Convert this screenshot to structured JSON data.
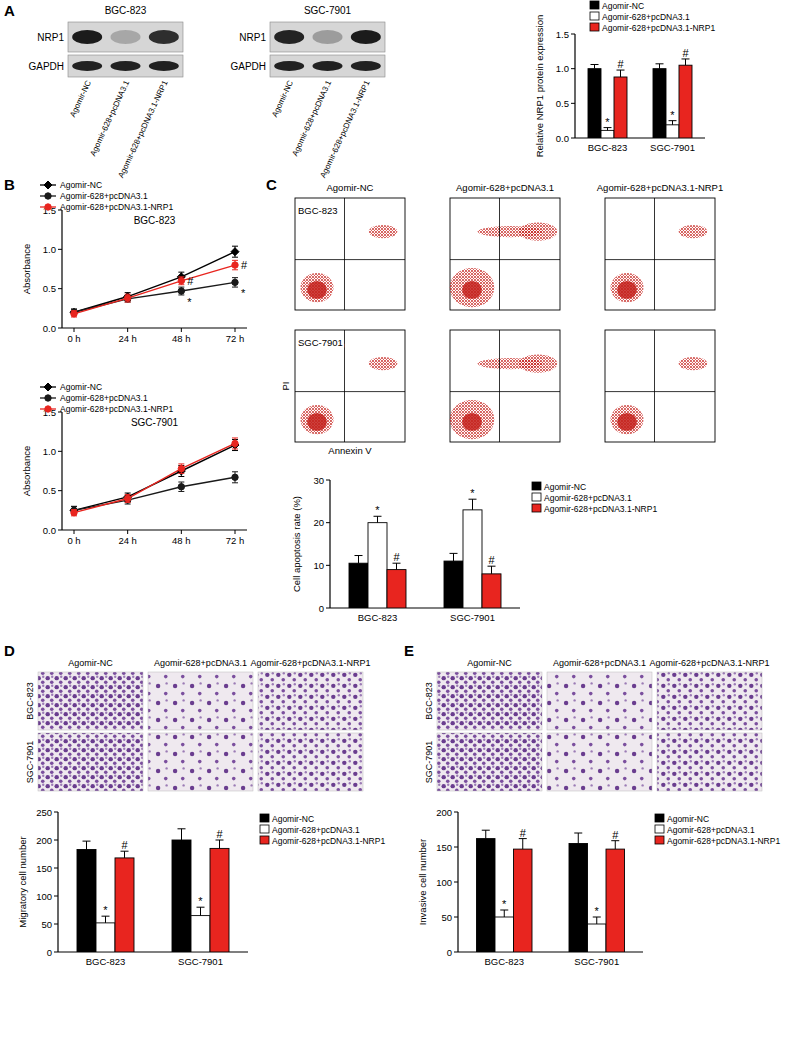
{
  "figure": {
    "panel_labels": [
      "A",
      "B",
      "C",
      "D",
      "E"
    ],
    "blots": [
      {
        "title": "BGC-823",
        "rows": [
          "NRP1",
          "GAPDH"
        ],
        "lanes": [
          "Agomir-NC",
          "Agomir-628+pcDNA3.1",
          "Agomir-628+pcDNA3.1-NRP1"
        ]
      },
      {
        "title": "SGC-7901",
        "rows": [
          "NRP1",
          "GAPDH"
        ],
        "lanes": [
          "Agomir-NC",
          "Agomir-628+pcDNA3.1",
          "Agomir-628+pcDNA3.1-NRP1"
        ]
      }
    ],
    "flow": {
      "columns": [
        "Agomir-NC",
        "Agomir-628+pcDNA3.1",
        "Agomir-628+pcDNA3.1-NRP1"
      ],
      "rows": [
        "BGC-823",
        "SGC-7901"
      ],
      "x_label": "Annexin V",
      "y_label": "PI"
    },
    "micrographs": [
      {
        "columns": [
          "Agomir-NC",
          "Agomir-628+pcDNA3.1",
          "Agomir-628+pcDNA3.1-NRP1"
        ],
        "rows": [
          "BGC-823",
          "SGC-7901"
        ]
      },
      {
        "columns": [
          "Agomir-NC",
          "Agomir-628+pcDNA3.1",
          "Agomir-628+pcDNA3.1-NRP1"
        ],
        "rows": [
          "BGC-823",
          "SGC-7901"
        ]
      }
    ]
  },
  "chart_data": [
    {
      "type": "bar",
      "y_label": "Relative NRP1 protein expression",
      "categories": [
        "BGC-823",
        "SGC-7901"
      ],
      "series": [
        {
          "name": "Agomir-NC",
          "color": "#000000",
          "values": [
            1.0,
            1.0
          ],
          "errors": [
            0.06,
            0.07
          ]
        },
        {
          "name": "Agomir-628+pcDNA3.1",
          "color": "#ffffff",
          "values": [
            0.11,
            0.19
          ],
          "errors": [
            0.04,
            0.06
          ],
          "annotations": [
            "*",
            "*"
          ]
        },
        {
          "name": "Agomir-628+pcDNA3.1-NRP1",
          "color": "#e8251f",
          "values": [
            0.88,
            1.05
          ],
          "errors": [
            0.1,
            0.09
          ],
          "annotations": [
            "#",
            "#"
          ]
        }
      ],
      "ylim": [
        0,
        1.5
      ],
      "yticks": [
        {
          "value": 0,
          "label": "0.0"
        },
        {
          "value": 0.5,
          "label": "0.5"
        },
        {
          "value": 1,
          "label": "1.0"
        },
        {
          "value": 1.5,
          "label": "1.5"
        }
      ],
      "legend": "upper right"
    },
    {
      "type": "line",
      "title": "BGC-823",
      "y_label": "Absorbance",
      "categories": [
        "0 h",
        "24 h",
        "48 h",
        "72 h"
      ],
      "series": [
        {
          "name": "Agomir-NC",
          "color": "#000000",
          "marker": "diamond",
          "values": [
            0.2,
            0.4,
            0.65,
            0.97
          ],
          "errors": [
            0.04,
            0.05,
            0.06,
            0.07
          ]
        },
        {
          "name": "Agomir-628+pcDNA3.1",
          "color": "#1a1a1a",
          "marker": "circle",
          "values": [
            0.2,
            0.37,
            0.47,
            0.58
          ],
          "errors": [
            0.04,
            0.04,
            0.05,
            0.06
          ],
          "annotations": [
            null,
            null,
            "*",
            "*"
          ]
        },
        {
          "name": "Agomir-628+pcDNA3.1-NRP1",
          "color": "#e8251f",
          "marker": "circle",
          "values": [
            0.18,
            0.38,
            0.6,
            0.8
          ],
          "errors": [
            0.04,
            0.05,
            0.05,
            0.06
          ],
          "annotations": [
            null,
            null,
            "#",
            "#"
          ]
        }
      ],
      "ylim": [
        0,
        1.5
      ],
      "yticks": [
        {
          "value": 0,
          "label": "0.0"
        },
        {
          "value": 0.5,
          "label": "0.5"
        },
        {
          "value": 1,
          "label": "1.0"
        },
        {
          "value": 1.5,
          "label": "1.5"
        }
      ],
      "legend": "upper left"
    },
    {
      "type": "line",
      "title": "SGC-7901",
      "y_label": "Absorbance",
      "categories": [
        "0 h",
        "24 h",
        "48 h",
        "72 h"
      ],
      "series": [
        {
          "name": "Agomir-NC",
          "color": "#000000",
          "marker": "diamond",
          "values": [
            0.25,
            0.42,
            0.75,
            1.08
          ],
          "errors": [
            0.05,
            0.05,
            0.07,
            0.07
          ]
        },
        {
          "name": "Agomir-628+pcDNA3.1",
          "color": "#1a1a1a",
          "marker": "circle",
          "values": [
            0.25,
            0.38,
            0.55,
            0.67
          ],
          "errors": [
            0.05,
            0.05,
            0.06,
            0.07
          ]
        },
        {
          "name": "Agomir-628+pcDNA3.1-NRP1",
          "color": "#e8251f",
          "marker": "circle",
          "values": [
            0.22,
            0.4,
            0.78,
            1.1
          ],
          "errors": [
            0.04,
            0.05,
            0.06,
            0.07
          ]
        }
      ],
      "ylim": [
        0,
        1.5
      ],
      "yticks": [
        {
          "value": 0,
          "label": "0.0"
        },
        {
          "value": 0.5,
          "label": "0.5"
        },
        {
          "value": 1,
          "label": "1.0"
        },
        {
          "value": 1.5,
          "label": "1.5"
        }
      ],
      "legend": "upper left"
    },
    {
      "type": "bar",
      "y_label": "Cell apoptosis rate (%)",
      "categories": [
        "BGC-823",
        "SGC-7901"
      ],
      "series": [
        {
          "name": "Agomir-NC",
          "color": "#000000",
          "values": [
            10.5,
            11
          ],
          "errors": [
            1.8,
            1.8
          ]
        },
        {
          "name": "Agomir-628+pcDNA3.1",
          "color": "#ffffff",
          "values": [
            20,
            23
          ],
          "errors": [
            1.5,
            2.5
          ],
          "annotations": [
            "*",
            "*"
          ]
        },
        {
          "name": "Agomir-628+pcDNA3.1-NRP1",
          "color": "#e8251f",
          "values": [
            9,
            8
          ],
          "errors": [
            1.5,
            1.8
          ],
          "annotations": [
            "#",
            "#"
          ]
        }
      ],
      "ylim": [
        0,
        30
      ],
      "yticks": [
        0,
        10,
        20,
        30
      ],
      "legend": "right"
    },
    {
      "type": "bar",
      "y_label": "Migratory cell number",
      "categories": [
        "BGC-823",
        "SGC-7901"
      ],
      "series": [
        {
          "name": "Agomir-NC",
          "color": "#000000",
          "values": [
            183,
            200
          ],
          "errors": [
            15,
            20
          ]
        },
        {
          "name": "Agomir-628+pcDNA3.1",
          "color": "#ffffff",
          "values": [
            52,
            65
          ],
          "errors": [
            12,
            15
          ],
          "annotations": [
            "*",
            "*"
          ]
        },
        {
          "name": "Agomir-628+pcDNA3.1-NRP1",
          "color": "#e8251f",
          "values": [
            168,
            185
          ],
          "errors": [
            12,
            15
          ],
          "annotations": [
            "#",
            "#"
          ]
        }
      ],
      "ylim": [
        0,
        250
      ],
      "yticks": [
        0,
        50,
        100,
        150,
        200,
        250
      ],
      "legend": "right"
    },
    {
      "type": "bar",
      "y_label": "Invasive cell number",
      "categories": [
        "BGC-823",
        "SGC-7901"
      ],
      "series": [
        {
          "name": "Agomir-NC",
          "color": "#000000",
          "values": [
            162,
            155
          ],
          "errors": [
            12,
            15
          ]
        },
        {
          "name": "Agomir-628+pcDNA3.1",
          "color": "#ffffff",
          "values": [
            50,
            40
          ],
          "errors": [
            10,
            10
          ],
          "annotations": [
            "*",
            "*"
          ]
        },
        {
          "name": "Agomir-628+pcDNA3.1-NRP1",
          "color": "#e8251f",
          "values": [
            147,
            147
          ],
          "errors": [
            15,
            12
          ],
          "annotations": [
            "#",
            "#"
          ]
        }
      ],
      "ylim": [
        0,
        200
      ],
      "yticks": [
        0,
        50,
        100,
        150,
        200
      ],
      "legend": "right"
    }
  ]
}
